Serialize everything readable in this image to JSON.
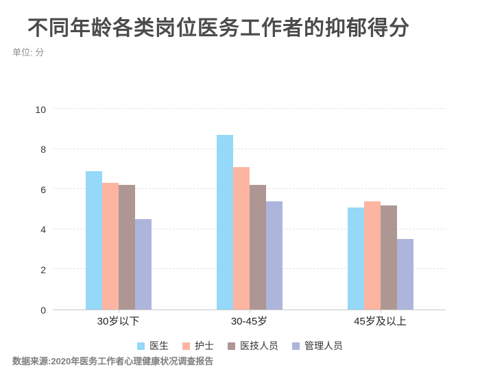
{
  "header": {
    "title": "不同年龄各类岗位医务工作者的抑郁得分",
    "unit": "单位: 分"
  },
  "chart_data": {
    "type": "bar",
    "title": "不同年龄各类岗位医务工作者的抑郁得分",
    "unit_label": "单位: 分",
    "categories": [
      "30岁以下",
      "30-45岁",
      "45岁及以上"
    ],
    "series": [
      {
        "name": "医生",
        "color": "#96d8f7",
        "values": [
          6.9,
          8.7,
          5.1
        ]
      },
      {
        "name": "护士",
        "color": "#fdb5a1",
        "values": [
          6.3,
          7.1,
          5.4
        ]
      },
      {
        "name": "医技人员",
        "color": "#ae9793",
        "values": [
          6.2,
          6.2,
          5.2
        ]
      },
      {
        "name": "管理人员",
        "color": "#aeb5dc",
        "values": [
          4.5,
          5.4,
          3.5
        ]
      }
    ],
    "xlabel": "",
    "ylabel": "",
    "ylim": [
      0,
      10
    ],
    "yticks": [
      0,
      2,
      4,
      6,
      8,
      10
    ],
    "grid": true,
    "grid_style": "dashed",
    "legend_position": "bottom"
  },
  "footer": {
    "source": "数据来源:2020年医务工作者心理健康状况调查报告"
  }
}
